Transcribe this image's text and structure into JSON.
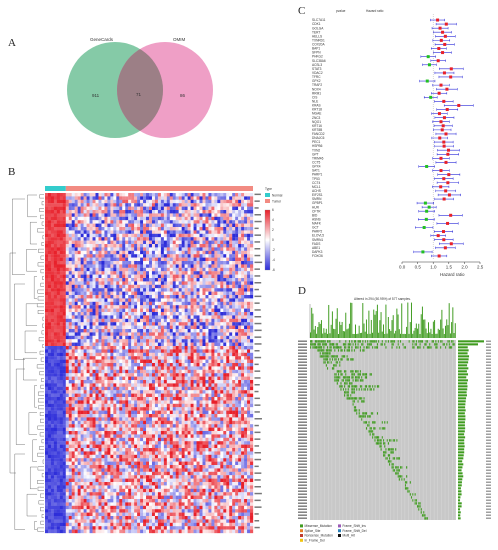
{
  "panels": {
    "a": {
      "label": "A",
      "venn": {
        "left_name": "GeneCards",
        "right_name": "OMIM",
        "left_only": "911",
        "overlap": "71",
        "right_only": "86",
        "left_color": "#5cb88a",
        "right_color": "#e97fb3",
        "overlap_color": "#9c7f86"
      }
    },
    "b": {
      "label": "B",
      "legend_title": "Type",
      "legend_items": [
        "Normal",
        "Tumor"
      ],
      "legend_colors": [
        "#33cccc",
        "#f28b82"
      ],
      "color_scale_ticks": [
        "6",
        "4",
        "2",
        "0",
        "-2",
        "-4",
        "-6"
      ],
      "heatmap_colors": {
        "high": "#e8202a",
        "mid": "#ffffff",
        "low": "#2b2bd9"
      },
      "normal_fraction": 0.1
    },
    "c": {
      "label": "C",
      "col_pvalue": "pvalue",
      "col_hr": "Hazard ratio",
      "xlabel": "Hazard ratio",
      "xticks": [
        "0.0",
        "0.5",
        "1.0",
        "1.5",
        "2.0",
        "2.5"
      ],
      "xlim": [
        0,
        2.5
      ],
      "point_colors": {
        "risk": "#e8202a",
        "protective": "#22c022"
      },
      "ci_color": "#2b2bd9"
    },
    "d": {
      "label": "D",
      "title": "Altered in 294 (50.95%) of 577 samples.",
      "top_bar_color": "#3f9b1f",
      "grid_color": "#c8c8c8",
      "mutation_color": "#3f9b1f",
      "legend_items": [
        "Missense_Mutation",
        "Frame_Shift_Ins",
        "Splice_Site",
        "Frame_Shift_Del",
        "Nonsense_Mutation",
        "Multi_Hit",
        "In_Frame_Del"
      ]
    }
  },
  "chart_data": {
    "type": "forest",
    "xlabel": "Hazard ratio",
    "xlim": [
      0,
      2.5
    ],
    "reference_line": 1.0,
    "rows": [
      {
        "gene": "SLC7A11",
        "hr": 1.14
      },
      {
        "gene": "CDK1",
        "hr": 1.42
      },
      {
        "gene": "GOLGA",
        "hr": 1.22
      },
      {
        "gene": "TERT",
        "hr": 1.3
      },
      {
        "gene": "HELLS",
        "hr": 1.39
      },
      {
        "gene": "TXNRD1",
        "hr": 1.26
      },
      {
        "gene": "COX20A",
        "hr": 1.37
      },
      {
        "gene": "BAP1",
        "hr": 1.18
      },
      {
        "gene": "SFPN",
        "hr": 1.3
      },
      {
        "gene": "PHKG2",
        "hr": 0.84
      },
      {
        "gene": "SLC38A6",
        "hr": 1.16
      },
      {
        "gene": "ACSL3",
        "hr": 0.88
      },
      {
        "gene": "STAT3",
        "hr": 1.58
      },
      {
        "gene": "VDAC2",
        "hr": 1.36
      },
      {
        "gene": "TFRC",
        "hr": 1.56
      },
      {
        "gene": "GPX2",
        "hr": 0.81
      },
      {
        "gene": "TRAF2",
        "hr": 1.25
      },
      {
        "gene": "NOX4",
        "hr": 1.44
      },
      {
        "gene": "RRM1",
        "hr": 1.19
      },
      {
        "gene": "CIS",
        "hr": 0.92
      },
      {
        "gene": "NLE",
        "hr": 1.34
      },
      {
        "gene": "KRAS",
        "hr": 1.82
      },
      {
        "gene": "KRT18",
        "hr": 1.45
      },
      {
        "gene": "MGAE",
        "hr": 1.2
      },
      {
        "gene": "ZNC3",
        "hr": 1.36
      },
      {
        "gene": "NQO1",
        "hr": 1.25
      },
      {
        "gene": "KRT16",
        "hr": 1.32
      },
      {
        "gene": "KRT8B",
        "hr": 1.29
      },
      {
        "gene": "FANCD2",
        "hr": 1.41
      },
      {
        "gene": "DNAJC6",
        "hr": 1.21
      },
      {
        "gene": "PEC1",
        "hr": 1.34
      },
      {
        "gene": "HSPB6",
        "hr": 1.35
      },
      {
        "gene": "TXN2",
        "hr": 1.49
      },
      {
        "gene": "GPT",
        "hr": 1.47
      },
      {
        "gene": "TRIM46",
        "hr": 1.25
      },
      {
        "gene": "CCT5",
        "hr": 1.41
      },
      {
        "gene": "GPX4",
        "hr": 0.79
      },
      {
        "gene": "SAT1",
        "hr": 1.25
      },
      {
        "gene": "PARP1",
        "hr": 1.5
      },
      {
        "gene": "TP53",
        "hr": 1.34
      },
      {
        "gene": "CCT4",
        "hr": 1.47
      },
      {
        "gene": "MCL1",
        "hr": 1.24
      },
      {
        "gene": "ACHS",
        "hr": 1.4
      },
      {
        "gene": "EIF2S1",
        "hr": 1.52
      },
      {
        "gene": "SMRN",
        "hr": 1.35
      },
      {
        "gene": "GPBP1",
        "hr": 0.75
      },
      {
        "gene": "HUR",
        "hr": 0.87
      },
      {
        "gene": "CFTR",
        "hr": 0.79
      },
      {
        "gene": "BID",
        "hr": 1.56
      },
      {
        "gene": "ASNS",
        "hr": 0.78
      },
      {
        "gene": "MAFK",
        "hr": 1.46
      },
      {
        "gene": "GCT",
        "hr": 0.71
      },
      {
        "gene": "PARP2",
        "hr": 1.33
      },
      {
        "gene": "ELOVL5",
        "hr": 1.16
      },
      {
        "gene": "SMRN1",
        "hr": 1.34
      },
      {
        "gene": "FADS",
        "hr": 1.58
      },
      {
        "gene": "ABE1",
        "hr": 1.39
      },
      {
        "gene": "DAPK3",
        "hr": 0.67
      },
      {
        "gene": "FOXO6",
        "hr": 1.19
      }
    ]
  }
}
